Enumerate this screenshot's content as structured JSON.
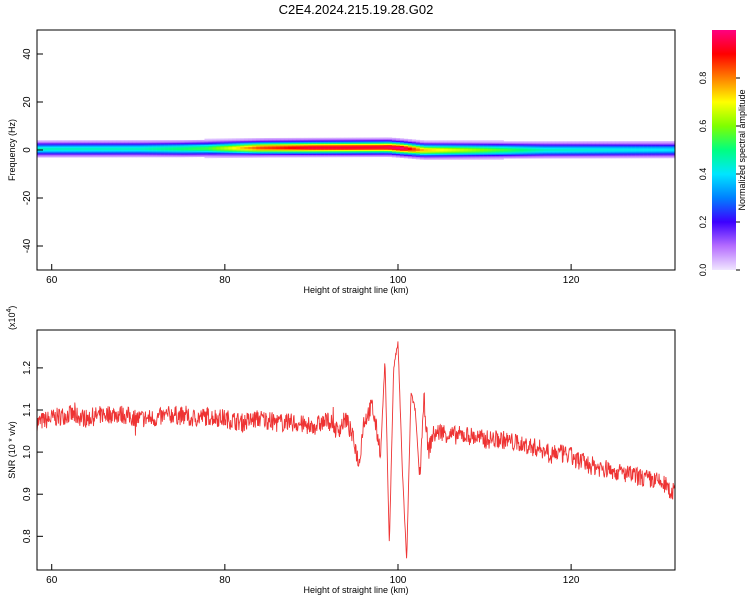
{
  "figure": {
    "title": "C2E4.2024.215.19.28.G02"
  },
  "chart_data": [
    {
      "type": "heatmap",
      "xlabel": "Height of straight line (km)",
      "ylabel": "Frequency (Hz)",
      "xlim": [
        58.3,
        132
      ],
      "ylim": [
        -50,
        50
      ],
      "xticks": [
        60,
        80,
        100,
        120
      ],
      "yticks": [
        -40,
        -20,
        0,
        20,
        40
      ],
      "colorbar": {
        "label": "Normalized spectral amplitude",
        "range": [
          0,
          1
        ],
        "ticks": [
          "0.0",
          "0.2",
          "0.4",
          "0.6",
          "0.8"
        ],
        "colors": [
          "#f0e6ff",
          "#b56cff",
          "#3c00ff",
          "#0080ff",
          "#00e6ff",
          "#00ff80",
          "#7fff00",
          "#ffff00",
          "#ff8000",
          "#ff0000",
          "#ff0080"
        ]
      },
      "band": {
        "center_frequency_hz": [
          [
            58.3,
            0.5
          ],
          [
            75,
            0.6
          ],
          [
            85,
            1.0
          ],
          [
            99,
            1.2
          ],
          [
            100.5,
            0.8
          ],
          [
            103,
            0.0
          ],
          [
            132,
            0.2
          ]
        ],
        "half_width_hz": 4,
        "peak_amplitude": [
          [
            58.3,
            0.45
          ],
          [
            70,
            0.45
          ],
          [
            78,
            0.55
          ],
          [
            84,
            0.85
          ],
          [
            90,
            0.95
          ],
          [
            98,
            0.95
          ],
          [
            100.5,
            1.0
          ],
          [
            103,
            0.75
          ],
          [
            110,
            0.6
          ],
          [
            117,
            0.45
          ],
          [
            132,
            0.4
          ]
        ]
      }
    },
    {
      "type": "line",
      "xlabel": "Height of straight line (km)",
      "ylabel": "SNR (10 * v/v)",
      "y_multiplier": "(x10",
      "y_multiplier_exp": "4",
      "y_multiplier_close": ")",
      "xlim": [
        58.3,
        132
      ],
      "ylim": [
        0.72,
        1.29
      ],
      "xticks": [
        60,
        80,
        100,
        120
      ],
      "yticks": [
        "0.8",
        "0.9",
        "1.0",
        "1.1",
        "1.2"
      ],
      "line_color": "#ee3333",
      "series": [
        {
          "x": [
            58.3,
            60,
            62,
            64,
            66,
            68,
            70,
            72,
            74,
            76,
            78,
            80,
            82,
            84,
            86,
            88,
            90,
            92,
            93,
            94,
            95,
            95.5,
            96,
            97,
            98,
            98.5,
            99,
            99.5,
            100,
            100.5,
            101,
            101.5,
            102,
            102.5,
            103,
            103.5,
            104,
            105,
            106,
            108,
            110,
            112,
            114,
            116,
            118,
            120,
            122,
            124,
            126,
            128,
            130,
            131,
            132
          ],
          "y": [
            1.07,
            1.08,
            1.09,
            1.08,
            1.09,
            1.09,
            1.08,
            1.08,
            1.09,
            1.08,
            1.085,
            1.08,
            1.07,
            1.08,
            1.07,
            1.07,
            1.06,
            1.075,
            1.05,
            1.08,
            1.02,
            0.97,
            1.07,
            1.11,
            1.0,
            1.22,
            0.78,
            1.2,
            1.26,
            0.96,
            0.74,
            1.14,
            1.1,
            0.94,
            1.13,
            1.0,
            1.04,
            1.05,
            1.04,
            1.04,
            1.03,
            1.03,
            1.02,
            1.01,
            1.0,
            0.99,
            0.97,
            0.96,
            0.95,
            0.94,
            0.93,
            0.92,
            0.9
          ]
        }
      ]
    }
  ]
}
